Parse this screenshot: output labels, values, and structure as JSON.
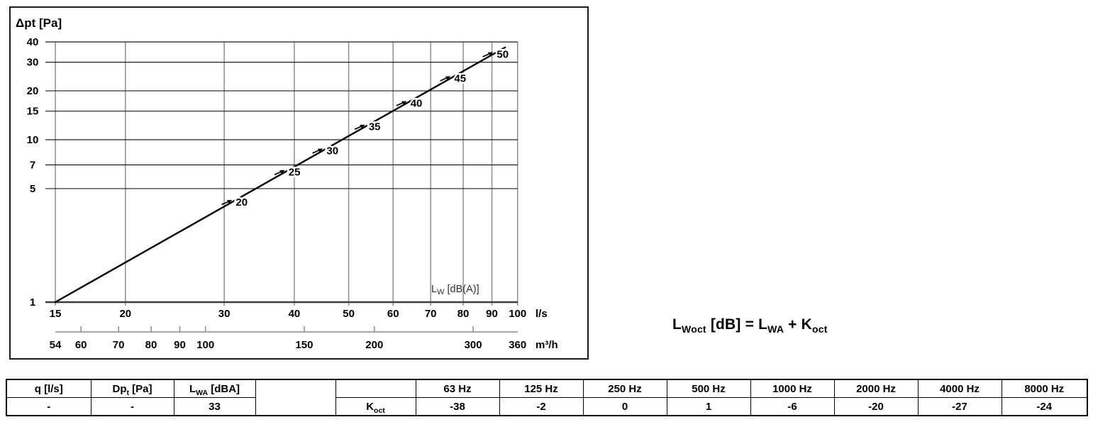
{
  "chart_data": {
    "type": "line",
    "title": "Δpt [Pa]",
    "x_axis": {
      "unit": "l/s",
      "scale": "log",
      "ticks": [
        15,
        20,
        30,
        40,
        50,
        60,
        70,
        80,
        90,
        100
      ],
      "range": [
        15,
        100
      ]
    },
    "x_axis_secondary": {
      "unit": "m³/h",
      "scale": "log",
      "ticks": [
        54,
        60,
        70,
        80,
        90,
        100,
        150,
        200,
        300,
        360
      ],
      "range": [
        54,
        360
      ],
      "ls_per_m3h": 3.6
    },
    "y_axis": {
      "label": "Δpt [Pa]",
      "scale": "log",
      "ticks": [
        40,
        30,
        20,
        15,
        10,
        7,
        5,
        1
      ],
      "range": [
        1,
        40
      ]
    },
    "grid": true,
    "series": [
      {
        "name": "pressure-drop-curve",
        "points_q_dpt": [
          [
            15,
            1
          ],
          [
            95,
            37
          ]
        ]
      }
    ],
    "curve_annotation_segments": [
      {
        "t": "L"
      },
      {
        "s": "W"
      },
      {
        "t": " [dB(A)]"
      }
    ],
    "line_markers": [
      {
        "label": "20",
        "q_ls": 31,
        "dpt_pa": 4.2
      },
      {
        "label": "25",
        "q_ls": 38.5,
        "dpt_pa": 6.3
      },
      {
        "label": "30",
        "q_ls": 45,
        "dpt_pa": 8.6
      },
      {
        "label": "35",
        "q_ls": 53.5,
        "dpt_pa": 12
      },
      {
        "label": "40",
        "q_ls": 63.5,
        "dpt_pa": 17
      },
      {
        "label": "45",
        "q_ls": 76,
        "dpt_pa": 24
      },
      {
        "label": "50",
        "q_ls": 90.5,
        "dpt_pa": 34
      }
    ],
    "colors": {
      "curve": "#000000",
      "h_gridline": "#1c1c1c",
      "v_gridline": "#8f8f8f",
      "axis": "#3d3d3d",
      "secondary_axis": "#8a8a8a",
      "frame": "#1c1c1c",
      "annotation_text": "#333333"
    }
  },
  "formula": {
    "segments": [
      {
        "t": "L"
      },
      {
        "s": "Woct"
      },
      {
        "t": " [dB] = L"
      },
      {
        "s": "WA"
      },
      {
        "t": " + K"
      },
      {
        "s": "oct"
      }
    ]
  },
  "table": {
    "columns": [
      {
        "header": [
          {
            "t": "q [l/s]"
          }
        ],
        "value": [
          {
            "t": "-"
          }
        ]
      },
      {
        "header": [
          {
            "t": "Dp"
          },
          {
            "s": "t"
          },
          {
            "t": " [Pa]"
          }
        ],
        "value": [
          {
            "t": "-"
          }
        ]
      },
      {
        "header": [
          {
            "t": "L"
          },
          {
            "s": "WA"
          },
          {
            "t": " [dBA]"
          }
        ],
        "value": [
          {
            "t": "33"
          }
        ]
      },
      {
        "merged": true
      },
      {
        "header": [],
        "value": [
          {
            "t": "K"
          },
          {
            "s": "oct"
          }
        ]
      },
      {
        "header": [
          {
            "t": "63 Hz"
          }
        ],
        "value": [
          {
            "t": "-38"
          }
        ]
      },
      {
        "header": [
          {
            "t": "125 Hz"
          }
        ],
        "value": [
          {
            "t": "-2"
          }
        ]
      },
      {
        "header": [
          {
            "t": "250 Hz"
          }
        ],
        "value": [
          {
            "t": "0"
          }
        ]
      },
      {
        "header": [
          {
            "t": "500 Hz"
          }
        ],
        "value": [
          {
            "t": "1"
          }
        ]
      },
      {
        "header": [
          {
            "t": "1000 Hz"
          }
        ],
        "value": [
          {
            "t": "-6"
          }
        ]
      },
      {
        "header": [
          {
            "t": "2000 Hz"
          }
        ],
        "value": [
          {
            "t": "-20"
          }
        ]
      },
      {
        "header": [
          {
            "t": "4000 Hz"
          }
        ],
        "value": [
          {
            "t": "-27"
          }
        ]
      },
      {
        "header": [
          {
            "t": "8000 Hz"
          }
        ],
        "value": [
          {
            "t": "-24"
          }
        ]
      }
    ]
  }
}
